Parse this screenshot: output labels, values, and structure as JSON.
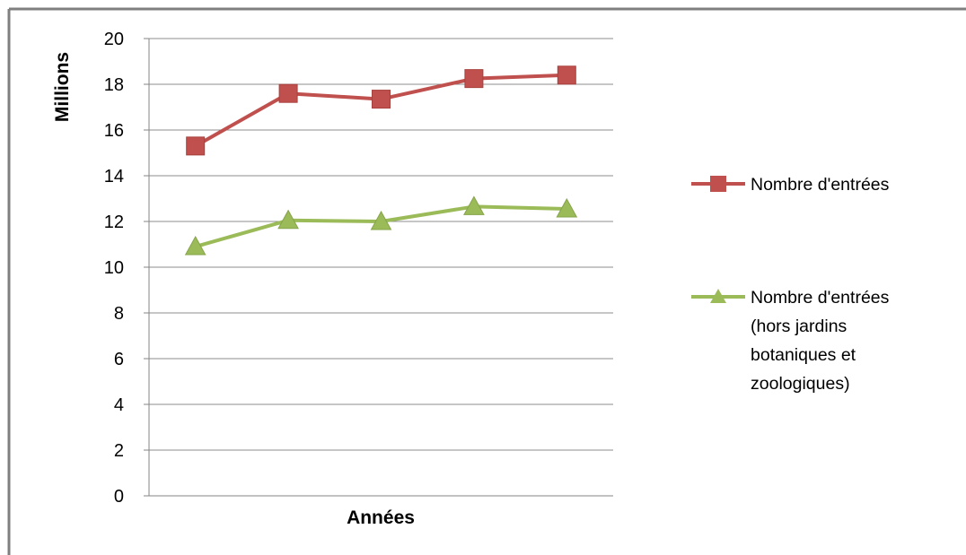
{
  "chart_data": {
    "type": "line",
    "title": "",
    "xlabel": "Années",
    "ylabel": "Millions",
    "ylim": [
      0,
      20
    ],
    "yticks": [
      "0",
      "2",
      "4",
      "6",
      "8",
      "10",
      "12",
      "14",
      "16",
      "18",
      "20"
    ],
    "categories": [
      "",
      "",
      "",
      "",
      ""
    ],
    "grid": true,
    "legend_position": "right",
    "series": [
      {
        "name": "Nombre d'entrées",
        "marker": "square",
        "color": "#c0504d",
        "values": [
          15.3,
          17.6,
          17.35,
          18.25,
          18.4
        ]
      },
      {
        "name": "Nombre d'entrées (hors jardins botaniques et zoologiques)",
        "name_lines": [
          "Nombre d'entrées",
          "(hors jardins",
          "botaniques et",
          "zoologiques)"
        ],
        "marker": "triangle",
        "color": "#9bbb59",
        "values": [
          10.9,
          12.05,
          12.0,
          12.65,
          12.55
        ]
      }
    ]
  }
}
